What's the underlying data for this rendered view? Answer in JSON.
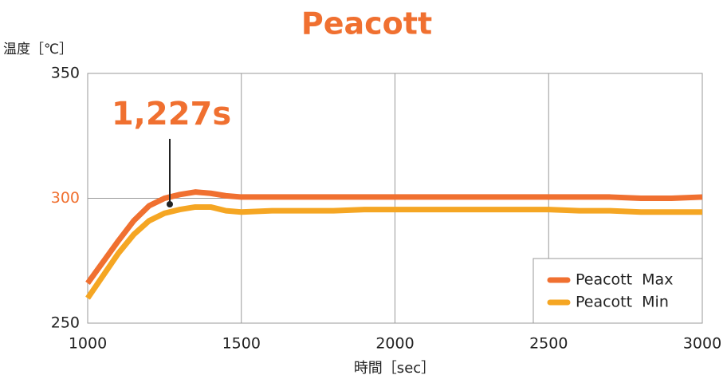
{
  "chart_data": {
    "type": "line",
    "title": "Peacott",
    "y_label": "温度［℃］",
    "x_label": "時間［sec］",
    "annotation": "1,227s",
    "x": [
      1000,
      1050,
      1100,
      1150,
      1200,
      1250,
      1300,
      1350,
      1400,
      1450,
      1500,
      1600,
      1700,
      1800,
      1900,
      2000,
      2100,
      2200,
      2300,
      2400,
      2500,
      2600,
      2700,
      2800,
      2900,
      3000
    ],
    "series": [
      {
        "name": "Peacott  Max",
        "color": "#f07030",
        "values": [
          266,
          274.5,
          283,
          291,
          297,
          300,
          301.5,
          302.5,
          302,
          301,
          300.5,
          300.5,
          300.5,
          300.5,
          300.5,
          300.5,
          300.5,
          300.5,
          300.5,
          300.5,
          300.5,
          300.5,
          300.5,
          300,
          300,
          300.5
        ]
      },
      {
        "name": "Peacott  Min",
        "color": "#f5a623",
        "values": [
          260,
          269,
          278,
          285.5,
          291,
          294,
          295.5,
          296.5,
          296.5,
          295,
          294.5,
          295,
          295,
          295,
          295.5,
          295.5,
          295.5,
          295.5,
          295.5,
          295.5,
          295.5,
          295,
          295,
          294.5,
          294.5,
          294.5
        ]
      }
    ],
    "xlim": [
      1000,
      3000
    ],
    "xticks": [
      1000,
      1500,
      2000,
      2500,
      3000
    ],
    "ylim": [
      250,
      350
    ],
    "yticks": [
      250,
      300,
      350
    ],
    "ytick_colors": [
      "#222222",
      "#f07030",
      "#222222"
    ],
    "grid": true,
    "legend": "lower right"
  }
}
